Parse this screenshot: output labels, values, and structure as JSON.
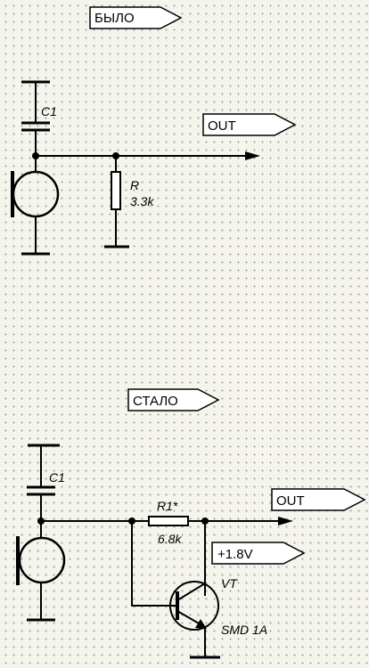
{
  "tags": {
    "before": "БЫЛО",
    "out_top": "OUT",
    "after": "СТАЛО",
    "out_bottom": "OUT",
    "supply": "+1.8V"
  },
  "top_circuit": {
    "c1": "C1",
    "r_name": "R",
    "r_value": "3.3k"
  },
  "bottom_circuit": {
    "c1": "C1",
    "r_name": "R1*",
    "r_value": "6.8k",
    "vt_name": "VT",
    "vt_type": "SMD 1A"
  }
}
